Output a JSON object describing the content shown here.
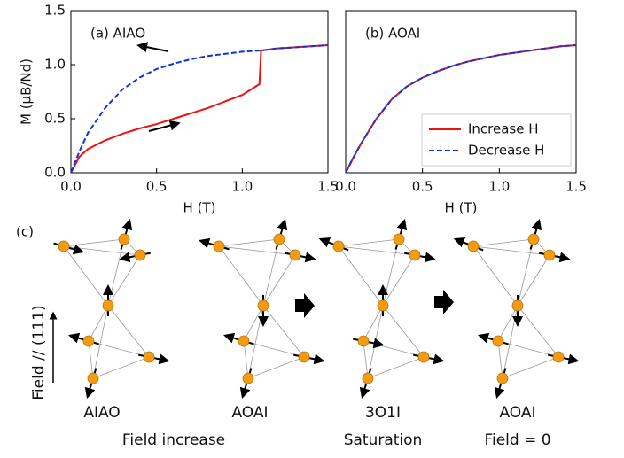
{
  "chart_data": [
    {
      "type": "line",
      "annotation": "(a) AIAO",
      "xlabel": "H (T)",
      "ylabel": "M (μB/Nd)",
      "x": [
        0,
        0.05,
        0.1,
        0.2,
        0.3,
        0.4,
        0.5,
        0.6,
        0.7,
        0.8,
        0.9,
        1.0,
        1.1,
        1.11,
        1.2,
        1.3,
        1.4,
        1.5
      ],
      "series": [
        {
          "color": "#ee1111",
          "linestyle": "solid",
          "values": [
            0,
            0.15,
            0.22,
            0.3,
            0.36,
            0.41,
            0.45,
            0.5,
            0.55,
            0.6,
            0.66,
            0.72,
            0.82,
            1.13,
            1.15,
            1.16,
            1.17,
            1.18
          ]
        },
        {
          "color": "#1133dd",
          "linestyle": "dashed",
          "values": [
            0,
            0.2,
            0.37,
            0.6,
            0.77,
            0.88,
            0.96,
            1.01,
            1.05,
            1.08,
            1.1,
            1.12,
            1.13,
            1.13,
            1.15,
            1.16,
            1.17,
            1.18
          ]
        }
      ],
      "xlim": [
        0,
        1.5
      ],
      "ylim": [
        0,
        1.5
      ],
      "xticks": [
        {
          "value": 0,
          "label": "0.0"
        },
        {
          "value": 0.5,
          "label": "0.5"
        },
        {
          "value": 1,
          "label": "1.0"
        },
        {
          "value": 1.5,
          "label": "1.5"
        }
      ],
      "yticks": [
        {
          "value": 0,
          "label": "0.0"
        },
        {
          "value": 0.5,
          "label": "0.5"
        },
        {
          "value": 1,
          "label": "1.0"
        },
        {
          "value": 1.5,
          "label": "1.5"
        }
      ]
    },
    {
      "type": "line",
      "annotation": "(b) AOAI",
      "xlabel": "H (T)",
      "x": [
        0,
        0.05,
        0.1,
        0.2,
        0.3,
        0.4,
        0.5,
        0.6,
        0.7,
        0.8,
        0.9,
        1.0,
        1.1,
        1.2,
        1.3,
        1.4,
        1.5
      ],
      "series": [
        {
          "name": "Increase H",
          "color": "#ee1111",
          "linestyle": "solid",
          "values": [
            0,
            0.14,
            0.27,
            0.5,
            0.68,
            0.8,
            0.88,
            0.94,
            0.99,
            1.03,
            1.06,
            1.09,
            1.11,
            1.13,
            1.15,
            1.17,
            1.18
          ]
        },
        {
          "name": "Decrease H",
          "color": "#1133dd",
          "linestyle": "dashed",
          "values": [
            0,
            0.14,
            0.27,
            0.5,
            0.68,
            0.8,
            0.88,
            0.94,
            0.99,
            1.03,
            1.06,
            1.09,
            1.11,
            1.13,
            1.15,
            1.17,
            1.18
          ]
        }
      ],
      "xlim": [
        0,
        1.5
      ],
      "ylim": [
        0,
        1.5
      ],
      "xticks": [
        {
          "value": 0,
          "label": "0.0"
        },
        {
          "value": 0.5,
          "label": "0.5"
        },
        {
          "value": 1,
          "label": "1.0"
        },
        {
          "value": 1.5,
          "label": "1.5"
        }
      ],
      "legend": "lower right"
    }
  ],
  "diagram": {
    "label": "(c)",
    "field_axis": "Field // (111)",
    "configs": [
      "AIAO",
      "AOAI",
      "3O1I",
      "AOAI"
    ],
    "stages": [
      "Field increase",
      "Saturation",
      "Field = 0"
    ]
  }
}
